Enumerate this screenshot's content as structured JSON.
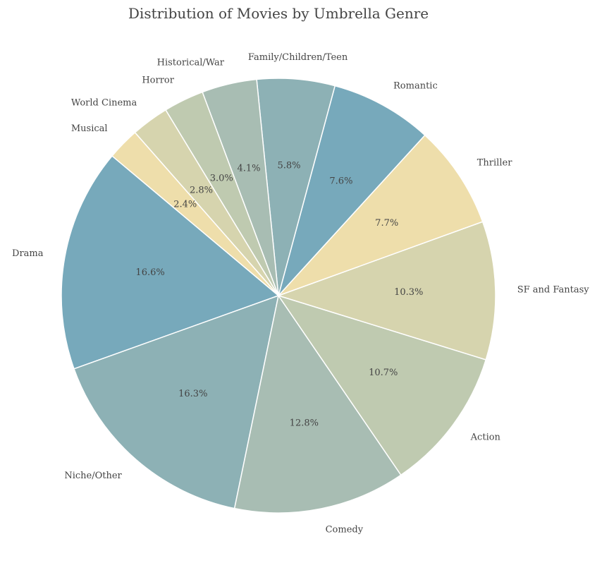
{
  "chart_data": {
    "type": "pie",
    "title": "Distribution of Movies by Umbrella Genre",
    "categories": [
      "Drama",
      "Niche/Other",
      "Comedy",
      "Action",
      "SF and Fantasy",
      "Thriller",
      "Romantic",
      "Family/Children/Teen",
      "Historical/War",
      "Horror",
      "World Cinema",
      "Musical"
    ],
    "values": [
      16.6,
      16.3,
      12.8,
      10.7,
      10.3,
      7.7,
      7.6,
      5.8,
      4.1,
      3.0,
      2.8,
      2.4
    ],
    "value_labels": [
      "16.6%",
      "16.3%",
      "12.8%",
      "10.7%",
      "10.3%",
      "7.7%",
      "7.6%",
      "5.8%",
      "4.1%",
      "3.0%",
      "2.8%",
      "2.4%"
    ],
    "colors": [
      "#77a9bb",
      "#8db1b5",
      "#a8bdb3",
      "#bfcab0",
      "#d6d4ae",
      "#eedeab",
      "#77a9bb",
      "#8db1b5",
      "#a8bdb3",
      "#bfcab0",
      "#d6d4ae",
      "#eedeab"
    ],
    "start_angle_deg": 140,
    "direction": "counterclockwise",
    "edge_color": "#ffffff"
  }
}
